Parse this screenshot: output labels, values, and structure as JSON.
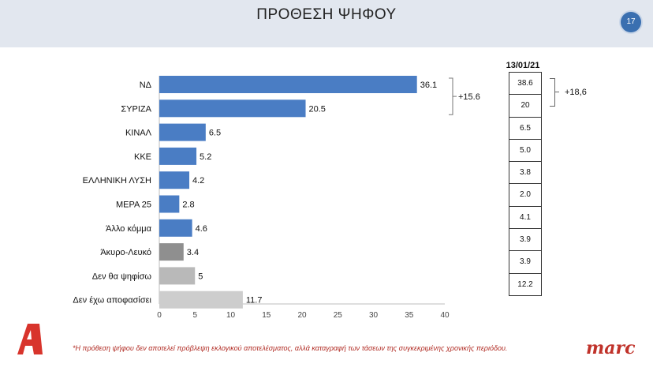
{
  "header": {
    "title": "ΠΡΟΘΕΣΗ ΨΗΦΟΥ",
    "page_number": "17"
  },
  "chart_data": {
    "type": "bar",
    "orientation": "horizontal",
    "categories": [
      "ΝΔ",
      "ΣΥΡΙΖΑ",
      "ΚΙΝΑΛ",
      "ΚΚΕ",
      "ΕΛΛΗΝΙΚΗ ΛΥΣΗ",
      "ΜΕΡΑ 25",
      "Άλλο κόμμα",
      "Άκυρο-Λευκό",
      "Δεν θα ψηφίσω",
      "Δεν έχω αποφασίσει"
    ],
    "values": [
      36.1,
      20.5,
      6.5,
      5.2,
      4.2,
      2.8,
      4.6,
      3.4,
      5,
      11.7
    ],
    "value_labels": [
      "36.1",
      "20.5",
      "6.5",
      "5.2",
      "4.2",
      "2.8",
      "4.6",
      "3.4",
      "5",
      "11.7"
    ],
    "colors": [
      "#4a7dc4",
      "#4a7dc4",
      "#4a7dc4",
      "#4a7dc4",
      "#4a7dc4",
      "#4a7dc4",
      "#4a7dc4",
      "#8f8f8f",
      "#b9b9b9",
      "#cdcdcd"
    ],
    "xlim": [
      0,
      40
    ],
    "xticks": [
      "0",
      "5",
      "10",
      "15",
      "20",
      "25",
      "30",
      "35",
      "40"
    ],
    "grid": false,
    "annotation": {
      "text": "+15.6",
      "between": [
        "ΝΔ",
        "ΣΥΡΙΖΑ"
      ]
    }
  },
  "comparison": {
    "date": "13/01/21",
    "values": [
      "38.6",
      "20",
      "6.5",
      "5.0",
      "3.8",
      "2.0",
      "4.1",
      "3.9",
      "3.9",
      "12.2"
    ],
    "difference": "+18,6"
  },
  "footer": {
    "note": "*Η πρόθεση ψήφου δεν αποτελεί πρόβλεψη εκλογικού αποτελέσματος, αλλά καταγραφή των τάσεων της συγκεκριμένης χρονικής περιόδου.",
    "brand": "marc",
    "accent_color": "#c0322a"
  }
}
